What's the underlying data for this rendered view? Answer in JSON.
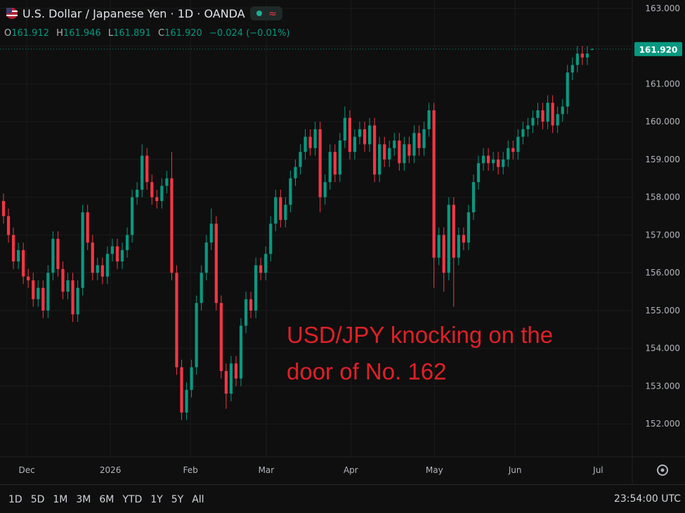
{
  "header": {
    "title": "U.S. Dollar / Japanese Yen · 1D · OANDA",
    "open_key": "O",
    "open": "161.912",
    "high_key": "H",
    "high": "161.946",
    "low_key": "L",
    "low": "161.891",
    "close_key": "C",
    "close": "161.920",
    "change": "−0.024 (−0.01%)"
  },
  "chart_data": {
    "type": "candlestick",
    "up_color": "#089981",
    "down_color": "#f23645",
    "grid": true,
    "annotation": [
      "USD/JPY knocking on the",
      "door of No. 162"
    ],
    "last_price_label": "161.920",
    "ylim": [
      151.13,
      163.22
    ],
    "yticks": [
      {
        "value": 152,
        "label": "152.000"
      },
      {
        "value": 153,
        "label": "153.000"
      },
      {
        "value": 154,
        "label": "154.000"
      },
      {
        "value": 155,
        "label": "155.000"
      },
      {
        "value": 156,
        "label": "156.000"
      },
      {
        "value": 157,
        "label": "157.000"
      },
      {
        "value": 158,
        "label": "158.000"
      },
      {
        "value": 159,
        "label": "159.000"
      },
      {
        "value": 160,
        "label": "160.000"
      },
      {
        "value": 161,
        "label": "161.000"
      },
      {
        "value": 162,
        "label": "162.000"
      },
      {
        "value": 163,
        "label": "163.000"
      }
    ],
    "xlim": [
      -0.71,
      127.1
    ],
    "xticks": [
      {
        "value": 4.7,
        "label": "Dec"
      },
      {
        "value": 21.6,
        "label": "2026"
      },
      {
        "value": 37.8,
        "label": "Feb"
      },
      {
        "value": 53.1,
        "label": "Mar"
      },
      {
        "value": 70.2,
        "label": "Apr"
      },
      {
        "value": 87.1,
        "label": "May"
      },
      {
        "value": 103.4,
        "label": "Jun"
      },
      {
        "value": 120.2,
        "label": "Jul"
      }
    ],
    "open": [
      157.9,
      157.5,
      157.0,
      156.3,
      156.6,
      155.9,
      155.8,
      155.3,
      155.6,
      155.0,
      156.0,
      156.9,
      156.1,
      155.5,
      155.8,
      154.9,
      155.6,
      157.6,
      156.8,
      156.0,
      156.2,
      155.9,
      156.5,
      156.7,
      156.3,
      156.6,
      157.0,
      158.0,
      158.2,
      159.1,
      158.4,
      158.0,
      157.9,
      158.3,
      158.5,
      156.0,
      153.5,
      152.3,
      152.9,
      153.5,
      155.2,
      156.0,
      156.8,
      157.3,
      155.2,
      153.4,
      152.8,
      153.6,
      153.2,
      154.6,
      155.3,
      155.0,
      156.2,
      156.0,
      156.5,
      157.3,
      158.0,
      157.4,
      157.8,
      158.5,
      158.8,
      159.2,
      159.6,
      159.3,
      159.8,
      158.0,
      158.4,
      159.2,
      158.6,
      159.5,
      160.1,
      159.2,
      159.6,
      159.8,
      159.4,
      159.9,
      158.6,
      159.4,
      159.0,
      159.3,
      159.5,
      158.9,
      159.4,
      159.1,
      159.7,
      159.3,
      159.8,
      160.3,
      156.4,
      157.0,
      156.0,
      157.8,
      156.4,
      157.0,
      156.8,
      157.6,
      158.4,
      158.9,
      159.1,
      158.9,
      159.0,
      158.8,
      159.0,
      159.3,
      159.2,
      159.6,
      159.8,
      159.9,
      160.1,
      160.3,
      160.0,
      160.5,
      159.9,
      160.2,
      160.4,
      161.3,
      161.5,
      161.8,
      161.7,
      161.912
    ],
    "high": [
      158.1,
      157.7,
      157.2,
      156.8,
      156.8,
      156.1,
      156.0,
      155.8,
      155.8,
      156.2,
      157.1,
      157.1,
      156.3,
      156.0,
      156.0,
      155.8,
      157.8,
      157.8,
      157.0,
      156.4,
      156.4,
      156.7,
      156.9,
      156.9,
      156.8,
      157.2,
      158.2,
      158.4,
      159.4,
      159.3,
      158.6,
      158.2,
      158.5,
      158.7,
      159.2,
      156.2,
      153.7,
      153.1,
      153.7,
      155.4,
      156.2,
      157.0,
      157.7,
      157.5,
      155.4,
      153.6,
      153.8,
      153.8,
      154.8,
      155.5,
      155.5,
      156.4,
      156.4,
      156.7,
      157.5,
      158.2,
      158.2,
      158.0,
      158.7,
      159.0,
      159.4,
      159.8,
      159.8,
      160.0,
      160.0,
      158.6,
      159.4,
      159.4,
      159.7,
      160.4,
      160.3,
      159.8,
      160.0,
      160.0,
      160.1,
      160.1,
      159.6,
      159.6,
      159.5,
      159.7,
      159.7,
      159.6,
      159.6,
      159.9,
      159.9,
      160.0,
      160.5,
      160.5,
      157.2,
      157.2,
      158.0,
      158.0,
      157.2,
      157.2,
      157.8,
      158.6,
      159.1,
      159.3,
      159.3,
      159.2,
      159.2,
      159.2,
      159.5,
      159.5,
      159.8,
      160.0,
      160.1,
      160.3,
      160.5,
      160.5,
      160.7,
      160.7,
      160.4,
      160.6,
      161.5,
      161.7,
      162.0,
      162.0,
      162.0,
      161.946
    ],
    "low": [
      157.3,
      156.8,
      156.1,
      156.1,
      155.7,
      155.6,
      155.1,
      155.1,
      154.8,
      154.8,
      155.8,
      155.9,
      155.3,
      155.3,
      154.7,
      154.7,
      155.4,
      156.6,
      155.8,
      155.8,
      155.7,
      155.7,
      156.3,
      156.1,
      156.1,
      156.4,
      156.8,
      157.8,
      158.0,
      158.2,
      157.8,
      157.7,
      157.7,
      158.1,
      155.8,
      153.3,
      152.1,
      152.1,
      152.7,
      153.3,
      155.0,
      155.8,
      156.6,
      155.0,
      153.2,
      152.4,
      152.6,
      153.0,
      153.0,
      154.4,
      154.8,
      154.8,
      155.8,
      155.8,
      156.3,
      157.1,
      157.2,
      157.2,
      157.6,
      158.3,
      158.6,
      159.0,
      159.1,
      159.1,
      157.6,
      157.8,
      158.2,
      158.4,
      158.4,
      159.3,
      159.0,
      159.0,
      159.4,
      159.2,
      159.2,
      158.4,
      158.4,
      158.8,
      158.8,
      159.1,
      158.7,
      158.7,
      158.9,
      158.9,
      159.1,
      159.1,
      159.6,
      155.6,
      156.2,
      155.5,
      155.8,
      155.1,
      156.2,
      156.6,
      156.6,
      157.4,
      158.2,
      158.7,
      158.7,
      158.7,
      158.6,
      158.6,
      158.8,
      159.0,
      159.0,
      159.4,
      159.6,
      159.7,
      159.9,
      159.8,
      159.8,
      159.7,
      159.7,
      160.0,
      160.2,
      161.1,
      161.3,
      161.5,
      161.5,
      161.891
    ],
    "close": [
      157.5,
      157.0,
      156.3,
      156.6,
      155.9,
      155.8,
      155.3,
      155.6,
      155.0,
      156.0,
      156.9,
      156.1,
      155.5,
      155.8,
      154.9,
      155.6,
      157.6,
      156.8,
      156.0,
      156.2,
      155.9,
      156.5,
      156.7,
      156.3,
      156.6,
      157.0,
      158.0,
      158.2,
      159.1,
      158.4,
      158.0,
      157.9,
      158.3,
      158.5,
      156.0,
      153.5,
      152.3,
      152.9,
      153.5,
      155.2,
      156.0,
      156.8,
      157.3,
      155.2,
      153.4,
      152.8,
      153.6,
      153.2,
      154.6,
      155.3,
      155.0,
      156.2,
      156.0,
      156.5,
      157.3,
      158.0,
      157.4,
      157.8,
      158.5,
      158.8,
      159.2,
      159.6,
      159.3,
      159.8,
      158.0,
      158.4,
      159.2,
      158.6,
      159.5,
      160.1,
      159.2,
      159.6,
      159.8,
      159.4,
      159.9,
      158.6,
      159.4,
      159.0,
      159.3,
      159.5,
      158.9,
      159.4,
      159.1,
      159.7,
      159.3,
      159.8,
      160.3,
      156.4,
      157.0,
      156.0,
      157.8,
      156.4,
      157.0,
      156.8,
      157.6,
      158.4,
      158.9,
      159.1,
      158.9,
      159.0,
      158.8,
      159.0,
      159.3,
      159.2,
      159.6,
      159.8,
      159.9,
      160.1,
      160.3,
      160.0,
      160.5,
      159.9,
      160.2,
      160.4,
      161.3,
      161.5,
      161.8,
      161.7,
      161.8,
      161.92
    ]
  },
  "toolbar": {
    "ranges": [
      "1D",
      "5D",
      "1M",
      "3M",
      "6M",
      "YTD",
      "1Y",
      "5Y",
      "All"
    ],
    "clock": "23:54:00 UTC"
  }
}
